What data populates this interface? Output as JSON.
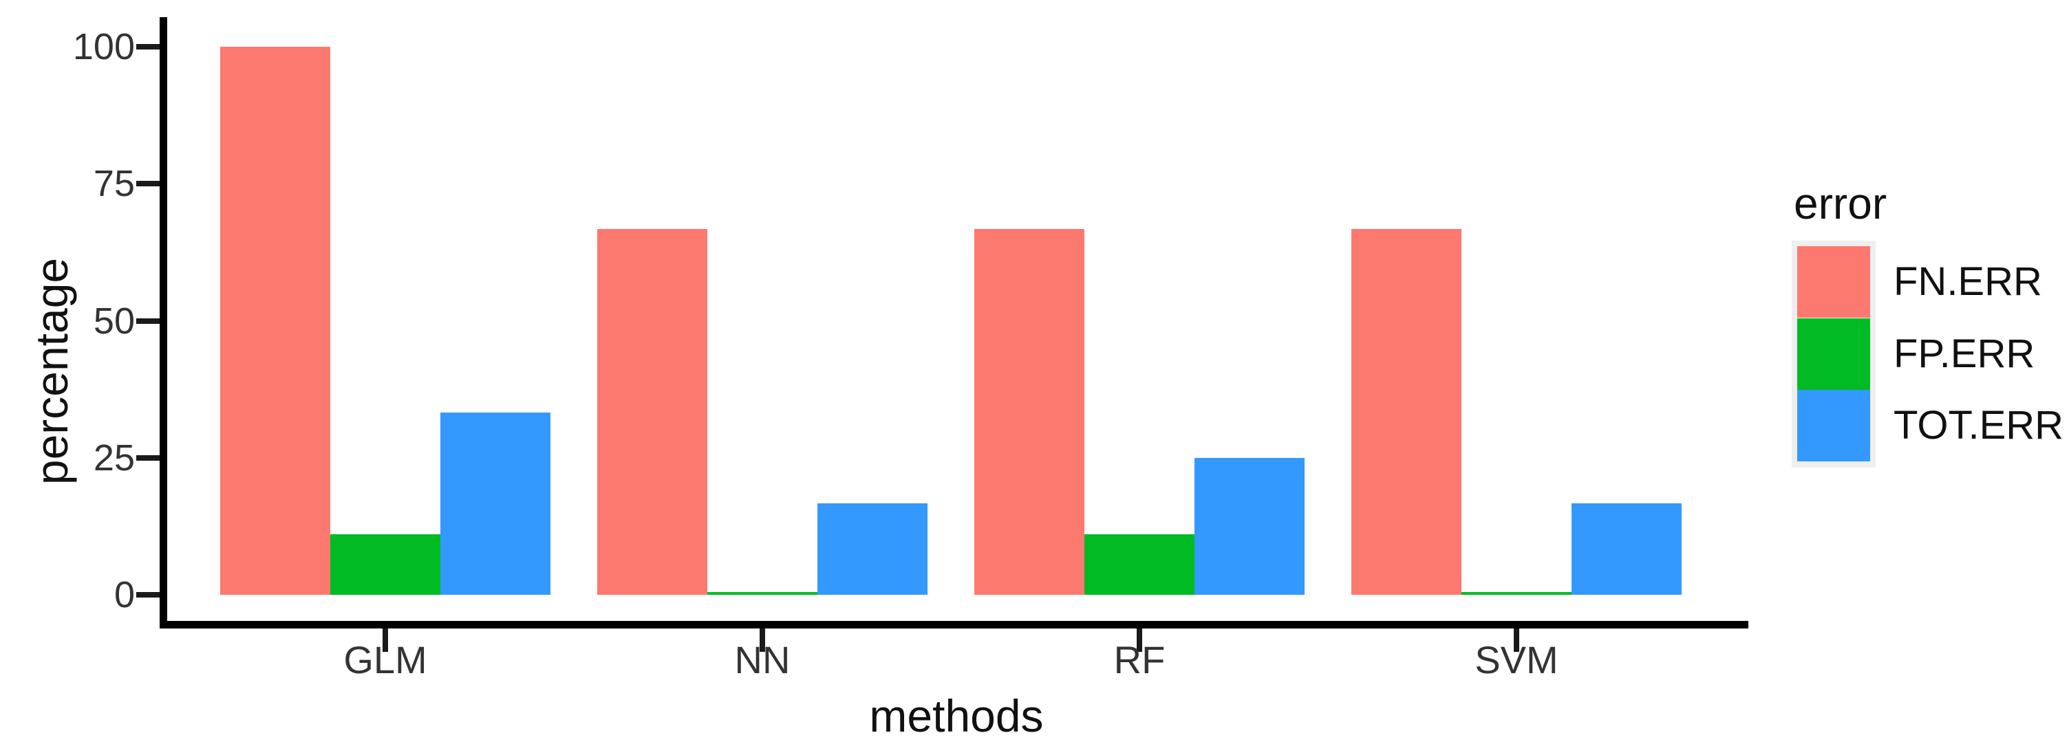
{
  "chart_data": {
    "type": "bar",
    "subtype": "grouped",
    "title": "",
    "categories": [
      "GLM",
      "NN",
      "RF",
      "SVM"
    ],
    "series": [
      {
        "name": "FN.ERR",
        "color": "#FC7970",
        "values": [
          100,
          66.7,
          66.7,
          66.7
        ]
      },
      {
        "name": "FP.ERR",
        "color": "#00BB24",
        "values": [
          11.1,
          0.5,
          11.1,
          0.5
        ]
      },
      {
        "name": "TOT.ERR",
        "color": "#3399FF",
        "values": [
          33.3,
          16.7,
          25,
          16.7
        ]
      }
    ],
    "xlabel": "methods",
    "ylabel": "percentage",
    "ylim": [
      0,
      100
    ],
    "yticks": [
      0,
      25,
      50,
      75,
      100
    ],
    "grid": false,
    "background": "#ffffff",
    "legend": {
      "title": "error",
      "position": "right",
      "entries": [
        "FN.ERR",
        "FP.ERR",
        "TOT.ERR"
      ],
      "key_background": "#efefef"
    },
    "axis_color": "#000000",
    "tick_label_color": "#333333"
  }
}
